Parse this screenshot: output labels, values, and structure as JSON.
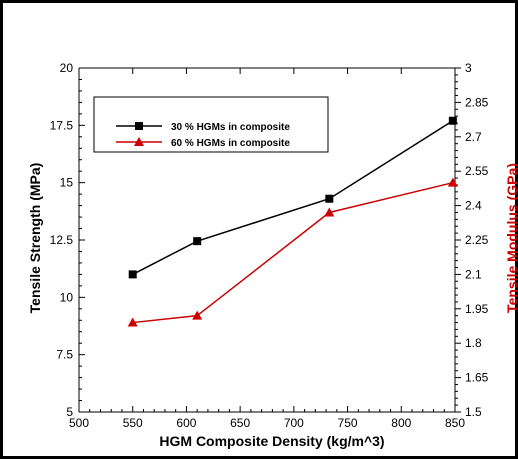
{
  "chart_data": {
    "type": "line",
    "title": "",
    "xlabel": "HGM Composite Density (kg/m^3)",
    "ylabel_left": "Tensile Strength (MPa)",
    "ylabel_right": "Tensile Modulus (GPa)",
    "xlim": [
      500,
      850
    ],
    "ylim_left": [
      5,
      20
    ],
    "ylim_right": [
      1.5,
      3
    ],
    "x_ticks": [
      "500",
      "550",
      "600",
      "650",
      "700",
      "750",
      "800",
      "850"
    ],
    "y_ticks_left": [
      "5",
      "7.5",
      "10",
      "12.5",
      "15",
      "17.5",
      "20"
    ],
    "y_ticks_right": [
      "1.5",
      "1.65",
      "1.8",
      "1.95",
      "2.1",
      "2.25",
      "2.4",
      "2.55",
      "2.7",
      "2.85",
      "3"
    ],
    "grid": false,
    "legend_position": "top-left",
    "series": [
      {
        "name": "30 % HGMs in composite",
        "axis": "left",
        "marker": "square",
        "color": "#000000",
        "x": [
          550,
          610,
          733,
          848
        ],
        "y": [
          11.0,
          12.45,
          14.3,
          17.7
        ]
      },
      {
        "name": "60 % HGMs in composite",
        "axis": "right",
        "marker": "triangle",
        "color": "#cc0000",
        "x": [
          550,
          610,
          733,
          848
        ],
        "y": [
          1.89,
          1.92,
          2.37,
          2.5
        ]
      }
    ],
    "colors": {
      "left_axis_title": "#000000",
      "right_axis_title": "#cc0000"
    }
  }
}
